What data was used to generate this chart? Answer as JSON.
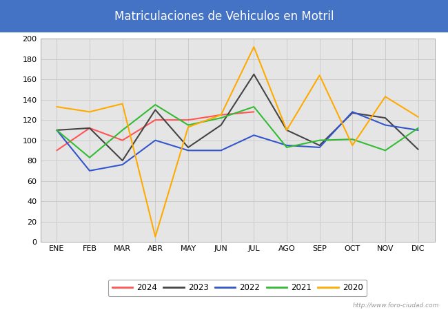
{
  "title": "Matriculaciones de Vehiculos en Motril",
  "title_color": "#ffffff",
  "title_bg_color": "#4472c4",
  "months": [
    "ENE",
    "FEB",
    "MAR",
    "ABR",
    "MAY",
    "JUN",
    "JUL",
    "AGO",
    "SEP",
    "OCT",
    "NOV",
    "DIC"
  ],
  "series": {
    "2024": {
      "color": "#ff5555",
      "data": [
        90,
        112,
        100,
        120,
        120,
        125,
        128,
        null,
        null,
        null,
        null,
        null
      ]
    },
    "2023": {
      "color": "#444444",
      "data": [
        110,
        112,
        80,
        130,
        93,
        115,
        165,
        110,
        95,
        127,
        122,
        91
      ]
    },
    "2022": {
      "color": "#3355cc",
      "data": [
        110,
        70,
        76,
        100,
        90,
        90,
        105,
        95,
        93,
        128,
        115,
        110
      ]
    },
    "2021": {
      "color": "#33bb33",
      "data": [
        110,
        83,
        110,
        135,
        115,
        122,
        133,
        93,
        100,
        101,
        90,
        112
      ]
    },
    "2020": {
      "color": "#ffaa00",
      "data": [
        133,
        128,
        136,
        5,
        113,
        125,
        192,
        110,
        164,
        95,
        143,
        123
      ]
    }
  },
  "ylim": [
    0,
    200
  ],
  "yticks": [
    0,
    20,
    40,
    60,
    80,
    100,
    120,
    140,
    160,
    180,
    200
  ],
  "grid_color": "#cccccc",
  "plot_bg_color": "#e5e5e5",
  "fig_bg_color": "#ffffff",
  "watermark": "http://www.foro-ciudad.com",
  "legend_years": [
    "2024",
    "2023",
    "2022",
    "2021",
    "2020"
  ],
  "title_fontsize": 12,
  "tick_fontsize": 8,
  "linewidth": 1.5
}
